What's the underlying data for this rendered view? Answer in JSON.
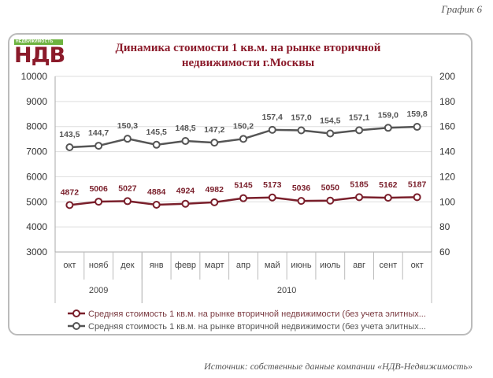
{
  "figure_label": "График 6",
  "logo": {
    "tag": "НЕДВИЖИМОСТЬ",
    "name": "НДВ"
  },
  "source": "Источник: собственные данные компании «НДВ-Недвижимость»",
  "chart_data": {
    "type": "line",
    "title_line1": "Динамика стоимости 1 кв.м. на рынке вторичной",
    "title_line2": "недвижимости г.Москвы",
    "categories": [
      "окт",
      "нояб",
      "дек",
      "янв",
      "февр",
      "март",
      "апр",
      "май",
      "июнь",
      "июль",
      "авг",
      "сент",
      "окт"
    ],
    "year_groups": [
      {
        "label": "2009",
        "count": 3
      },
      {
        "label": "2010",
        "count": 10
      }
    ],
    "left_axis": {
      "ylim": [
        3000,
        10000
      ],
      "ticks": [
        "3000",
        "4000",
        "5000",
        "6000",
        "7000",
        "8000",
        "9000",
        "10000"
      ]
    },
    "right_axis": {
      "ylim": [
        60,
        200
      ],
      "ticks": [
        "60",
        "80",
        "100",
        "120",
        "140",
        "160",
        "180",
        "200"
      ]
    },
    "grid": true,
    "legend_position": "bottom",
    "series": [
      {
        "name": "Средняя стоимость 1 кв.м. на рынке вторичной недвижимости (без учета элитных...",
        "axis": "left",
        "color": "#7a1f2b",
        "values": [
          4872,
          5006,
          5027,
          4884,
          4924,
          4982,
          5145,
          5173,
          5036,
          5050,
          5185,
          5162,
          5187
        ],
        "labels": [
          "4872",
          "5006",
          "5027",
          "4884",
          "4924",
          "4982",
          "5145",
          "5173",
          "5036",
          "5050",
          "5185",
          "5162",
          "5187"
        ]
      },
      {
        "name": "Средняя стоимость 1 кв.м. на рынке вторичной недвижимости (без учета элитных...",
        "axis": "right",
        "color": "#555555",
        "values": [
          143.5,
          144.7,
          150.3,
          145.5,
          148.5,
          147.2,
          150.2,
          157.4,
          157.0,
          154.5,
          157.1,
          159.0,
          159.8
        ],
        "labels": [
          "143,5",
          "144,7",
          "150,3",
          "145,5",
          "148,5",
          "147,2",
          "150,2",
          "157,4",
          "157,0",
          "154,5",
          "157,1",
          "159,0",
          "159,8"
        ]
      }
    ]
  }
}
